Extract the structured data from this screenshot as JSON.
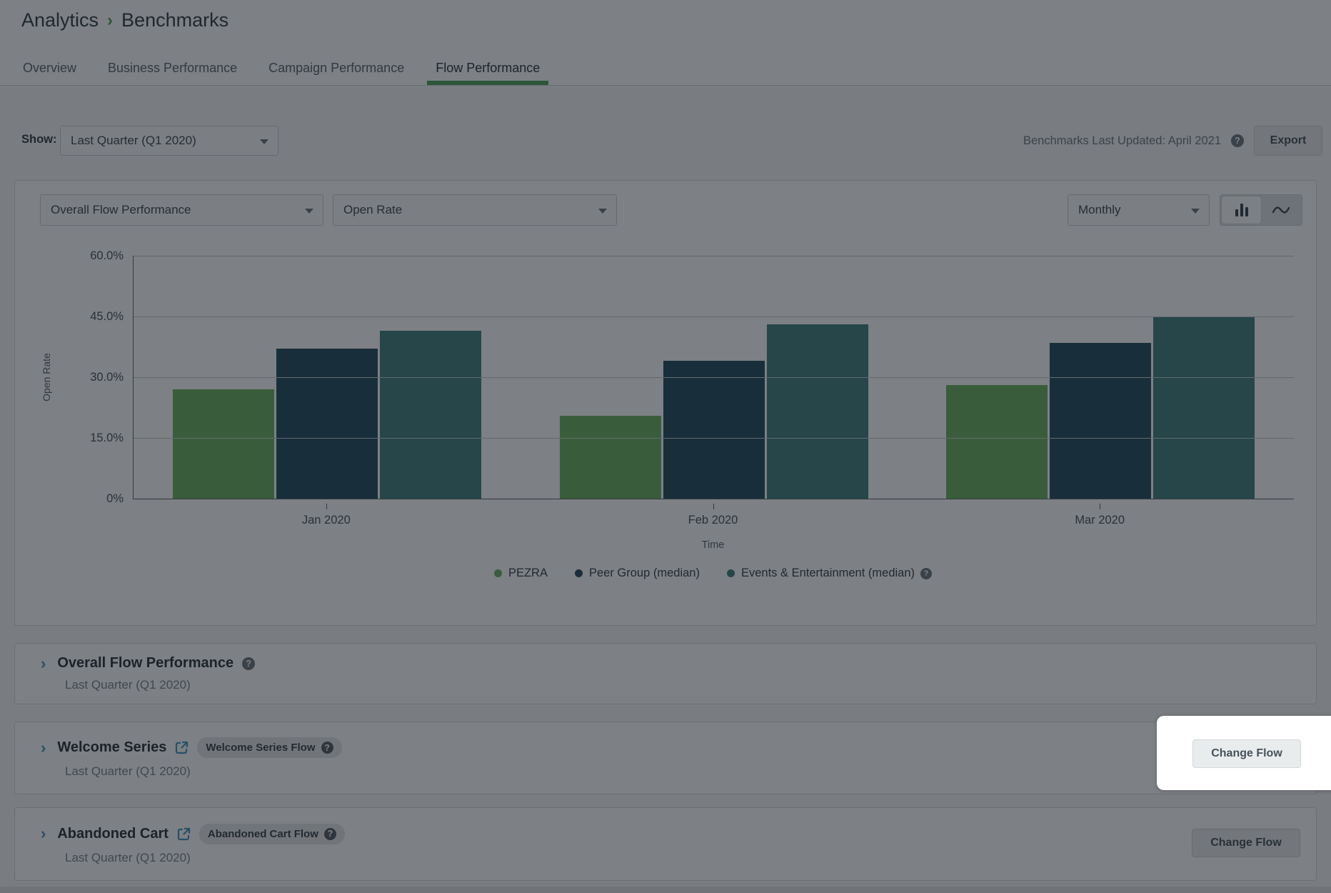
{
  "breadcrumb": {
    "parent": "Analytics",
    "current": "Benchmarks"
  },
  "tabs": [
    {
      "label": "Overview"
    },
    {
      "label": "Business Performance"
    },
    {
      "label": "Campaign Performance"
    },
    {
      "label": "Flow Performance"
    }
  ],
  "active_tab": "Flow Performance",
  "toolbar": {
    "show_label": "Show:",
    "show_value": "Last Quarter (Q1 2020)",
    "updated_text": "Benchmarks Last Updated: April 2021",
    "export_label": "Export"
  },
  "chart_card": {
    "metric_dropdown": "Overall Flow Performance",
    "measure_dropdown": "Open Rate",
    "interval_dropdown": "Monthly"
  },
  "chart_data": {
    "type": "bar",
    "categories": [
      "Jan 2020",
      "Feb 2020",
      "Mar 2020"
    ],
    "series": [
      {
        "name": "PEZRA",
        "color": "#6BB45F",
        "values": [
          27,
          20.5,
          28
        ]
      },
      {
        "name": "Peer Group (median)",
        "color": "#235060",
        "values": [
          37,
          34,
          38.5
        ]
      },
      {
        "name": "Events & Entertainment (median)",
        "color": "#43827E",
        "values": [
          41.5,
          43,
          45
        ]
      }
    ],
    "ylabel": "Open Rate",
    "xlabel": "Time",
    "yticks": [
      "60.0%",
      "45.0%",
      "30.0%",
      "15.0%",
      "0%"
    ],
    "ylim": [
      0,
      60
    ],
    "grid": true,
    "legend_position": "bottom",
    "values_unit": "percent"
  },
  "sections": [
    {
      "title": "Overall Flow Performance",
      "subtitle": "Last Quarter (Q1 2020)"
    },
    {
      "title": "Welcome Series",
      "subtitle": "Last Quarter (Q1 2020)",
      "badge": "Welcome Series Flow",
      "button_label": "Change Flow"
    },
    {
      "title": "Abandoned Cart",
      "subtitle": "Last Quarter (Q1 2020)",
      "badge": "Abandoned Cart Flow",
      "button_label": "Change Flow"
    }
  ],
  "colors": {
    "accent_green": "#4FA35A",
    "link_blue": "#4496C4"
  }
}
